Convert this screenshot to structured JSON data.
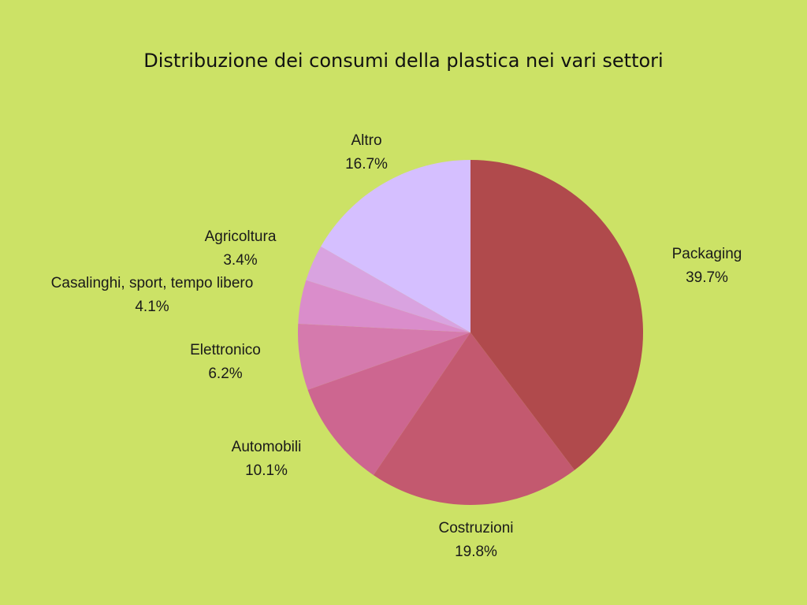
{
  "chart_data": {
    "type": "pie",
    "title": "Distribuzione dei consumi della plastica nei vari settori",
    "categories": [
      "Packaging",
      "Costruzioni",
      "Automobili",
      "Elettronico",
      "Casalinghi, sport, tempo libero",
      "Agricoltura",
      "Altro"
    ],
    "values": [
      39.7,
      19.8,
      10.1,
      6.2,
      4.1,
      3.4,
      16.7
    ],
    "value_labels": [
      "39.7%",
      "19.8%",
      "10.1%",
      "6.2%",
      "4.1%",
      "3.4%",
      "16.7%"
    ],
    "colors": [
      "#b04a4c",
      "#c3596f",
      "#cd6690",
      "#d57aad",
      "#da8dcb",
      "#d9a3e0",
      "#d5bfff"
    ]
  }
}
